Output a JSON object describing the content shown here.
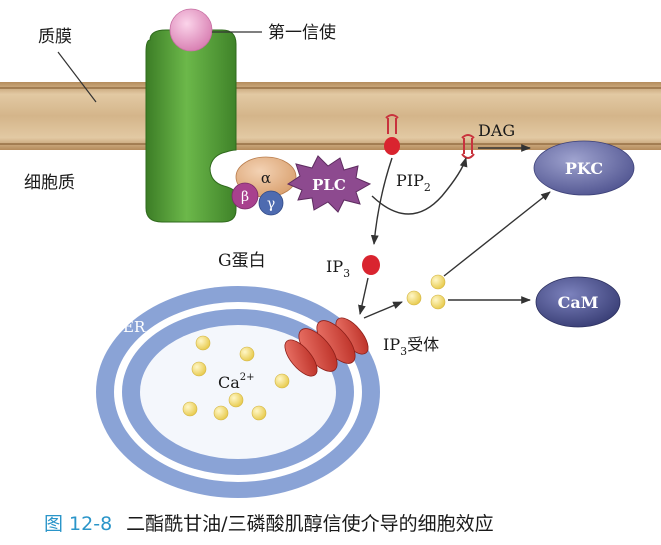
{
  "labels": {
    "membrane": "质膜",
    "first_messenger": "第一信使",
    "cytoplasm": "细胞质",
    "alpha": "α",
    "beta": "β",
    "gamma": "γ",
    "plc": "PLC",
    "pip2_base": "PIP",
    "pip2_sub": "2",
    "dag": "DAG",
    "pkc": "PKC",
    "g_protein": "G蛋白",
    "ip3_base": "IP",
    "ip3_sub": "3",
    "er": "ER",
    "ca_base": "Ca",
    "ca_sup": "2+",
    "ip3_receptor_base": "IP",
    "ip3_receptor_sub": "3",
    "ip3_receptor_suffix": "受体",
    "cam": "CaM"
  },
  "caption": {
    "figure_number": "图 12-8",
    "text": "二酯酰甘油/三磷酸肌醇信使介导的细胞效应"
  },
  "colors": {
    "membrane_band": "#cfae82",
    "membrane_line": "#8a6438",
    "receptor_green": "#4f9a34",
    "messenger_pink": "#e9a0c8",
    "plc_purple": "#8d4a8f",
    "pkc_cam_blue": "#5a5f9e",
    "er_blue": "#8aa3d6",
    "receptor_red": "#d9473c",
    "ion_yellow": "#f2dd6b",
    "caption_blue": "#2a95c9"
  }
}
